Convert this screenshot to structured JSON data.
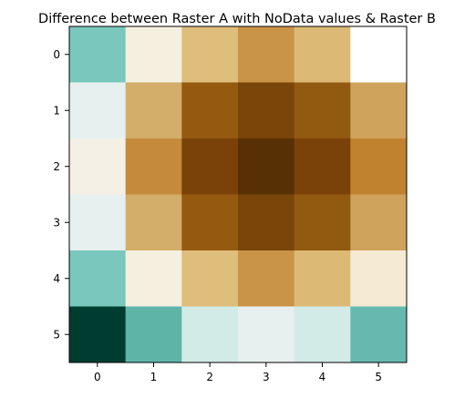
{
  "chart_data": {
    "type": "heatmap",
    "title": "Difference between Raster A with NoData values & Raster B",
    "xlabel": "",
    "ylabel": "",
    "x_ticks": [
      "0",
      "1",
      "2",
      "3",
      "4",
      "5"
    ],
    "y_ticks": [
      "0",
      "1",
      "2",
      "3",
      "4",
      "5"
    ],
    "grid": false,
    "legend": "none",
    "colormap": "BrBG",
    "nodata_color": "#ffffff",
    "cells": [
      [
        "#7ac8bd",
        "#f5efe0",
        "#dfbd7a",
        "#c99448",
        "#dcba75",
        null
      ],
      [
        "#e6f0ef",
        "#d3ae6a",
        "#955a10",
        "#794508",
        "#925910",
        "#cfa35c"
      ],
      [
        "#f4f0e6",
        "#c68a3c",
        "#7a4109",
        "#583006",
        "#7a4109",
        "#c1822f"
      ],
      [
        "#e6f0ef",
        "#d3ae6a",
        "#955a10",
        "#794508",
        "#925910",
        "#cfa35c"
      ],
      [
        "#7ac8bd",
        "#f5efe0",
        "#dfbd7a",
        "#c99448",
        "#dcba75",
        "#f5ebd4"
      ],
      [
        "#003d31",
        "#5fb4a8",
        "#d2ebe7",
        "#e7f0ef",
        "#d2ebe7",
        "#66b9ae"
      ]
    ]
  }
}
